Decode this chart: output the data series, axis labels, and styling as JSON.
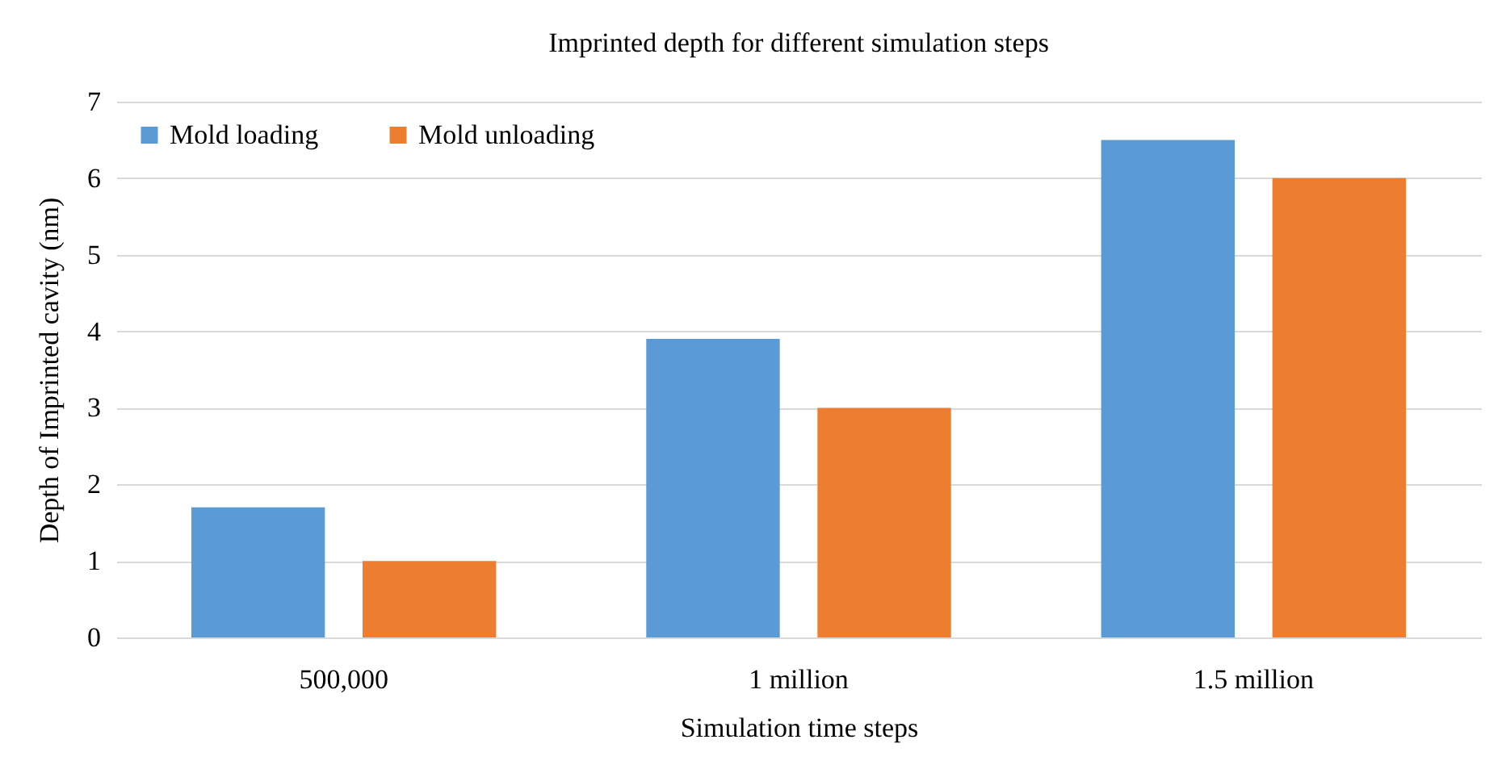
{
  "chart_data": {
    "type": "bar",
    "title": "Imprinted depth for different simulation steps",
    "xlabel": "Simulation time steps",
    "ylabel": "Depth of Imprinted cavity (nm)",
    "categories": [
      "500,000",
      "1 million",
      "1.5 million"
    ],
    "series": [
      {
        "name": "Mold loading",
        "color": "#5b9bd5",
        "values": [
          1.7,
          3.9,
          6.5
        ]
      },
      {
        "name": "Mold unloading",
        "color": "#ed7d31",
        "values": [
          1.0,
          3.0,
          6.0
        ]
      }
    ],
    "ylim": [
      0,
      7
    ],
    "yticks": [
      0,
      1,
      2,
      3,
      4,
      5,
      6,
      7
    ],
    "grid": "y",
    "legend": "top left"
  }
}
